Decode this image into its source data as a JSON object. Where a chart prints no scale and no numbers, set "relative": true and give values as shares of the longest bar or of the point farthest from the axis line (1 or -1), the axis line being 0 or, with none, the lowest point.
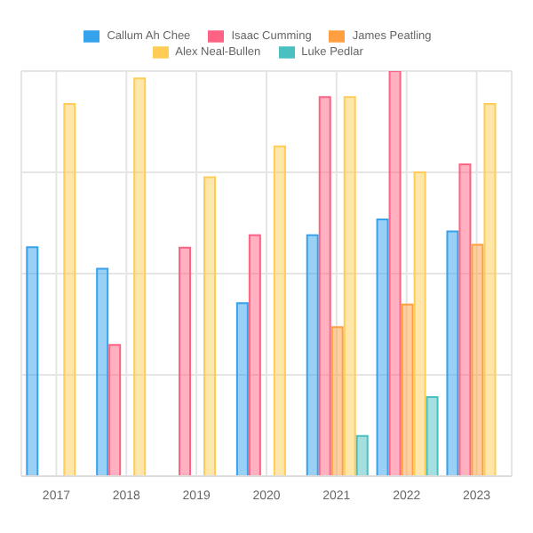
{
  "chart_data": {
    "type": "bar",
    "relative": true,
    "categories": [
      "2017",
      "2018",
      "2019",
      "2020",
      "2021",
      "2022",
      "2023"
    ],
    "series": [
      {
        "name": "Callum Ah Chee",
        "color": "#36a2eb",
        "values": [
          0.565,
          0.512,
          null,
          0.427,
          0.595,
          0.634,
          0.604
        ]
      },
      {
        "name": "Isaac Cumming",
        "color": "#ff6384",
        "values": [
          null,
          0.324,
          0.564,
          0.595,
          0.936,
          1,
          0.77
        ]
      },
      {
        "name": "James Peatling",
        "color": "#ff9f40",
        "values": [
          null,
          null,
          null,
          null,
          0.368,
          0.424,
          0.571
        ]
      },
      {
        "name": "Alex Neal-Bullen",
        "color": "#ffcd56",
        "values": [
          0.919,
          0.982,
          0.738,
          0.814,
          0.936,
          0.75,
          0.919
        ]
      },
      {
        "name": "Luke Pedlar",
        "color": "#4bc0c0",
        "values": [
          null,
          null,
          null,
          null,
          0.099,
          0.195,
          null
        ]
      }
    ],
    "grid": true,
    "legend": "top"
  }
}
